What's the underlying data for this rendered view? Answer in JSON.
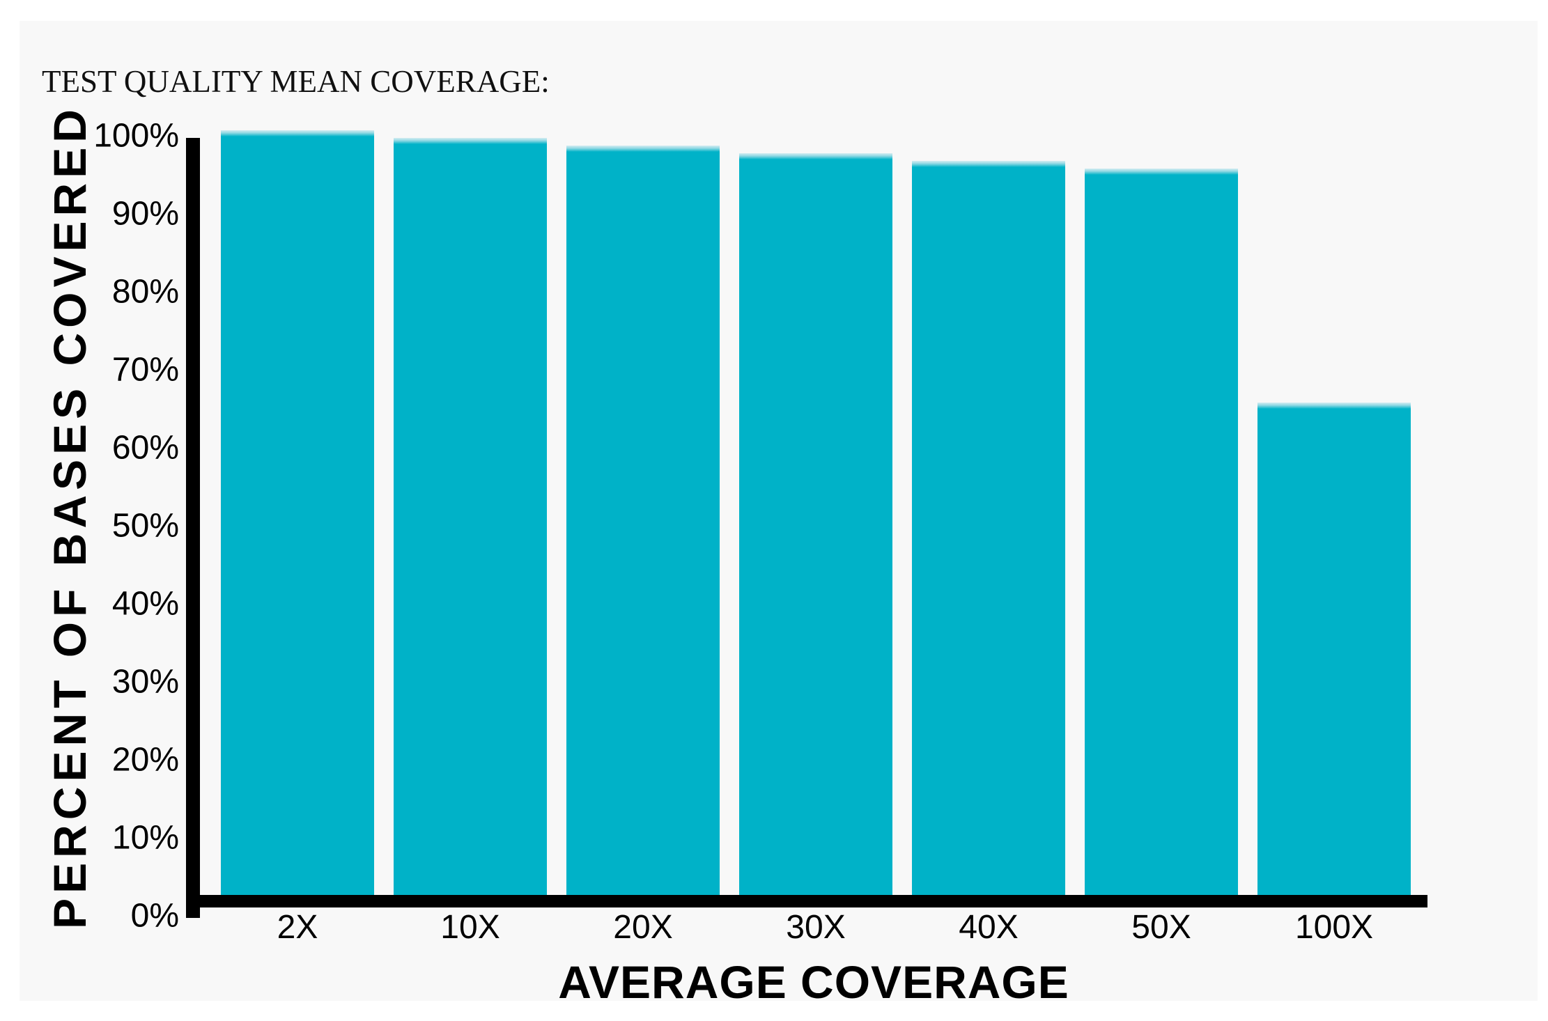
{
  "page": {
    "background": "#ffffff",
    "panel_background": "#f8f8f8"
  },
  "chart_data": {
    "type": "bar",
    "title": "TEST QUALITY MEAN COVERAGE:",
    "xlabel": "AVERAGE COVERAGE",
    "ylabel": "PERCENT OF BASES COVERED",
    "categories": [
      "2X",
      "10X",
      "20X",
      "30X",
      "40X",
      "50X",
      "100X"
    ],
    "values": [
      101,
      100,
      99,
      98,
      97,
      96,
      65
    ],
    "ylim": [
      0,
      100
    ],
    "ytick_labels_top_to_bottom": [
      "100%",
      "90%",
      "80%",
      "70%",
      "60%",
      "50%",
      "40%",
      "30%",
      "20%",
      "10%",
      "0%"
    ],
    "grid": false,
    "legend": false,
    "bar_color": "#00b2c8",
    "bar_top_highlight_color": "#8fd8e3",
    "axis_color": "#000000",
    "text_color": "#000000"
  }
}
